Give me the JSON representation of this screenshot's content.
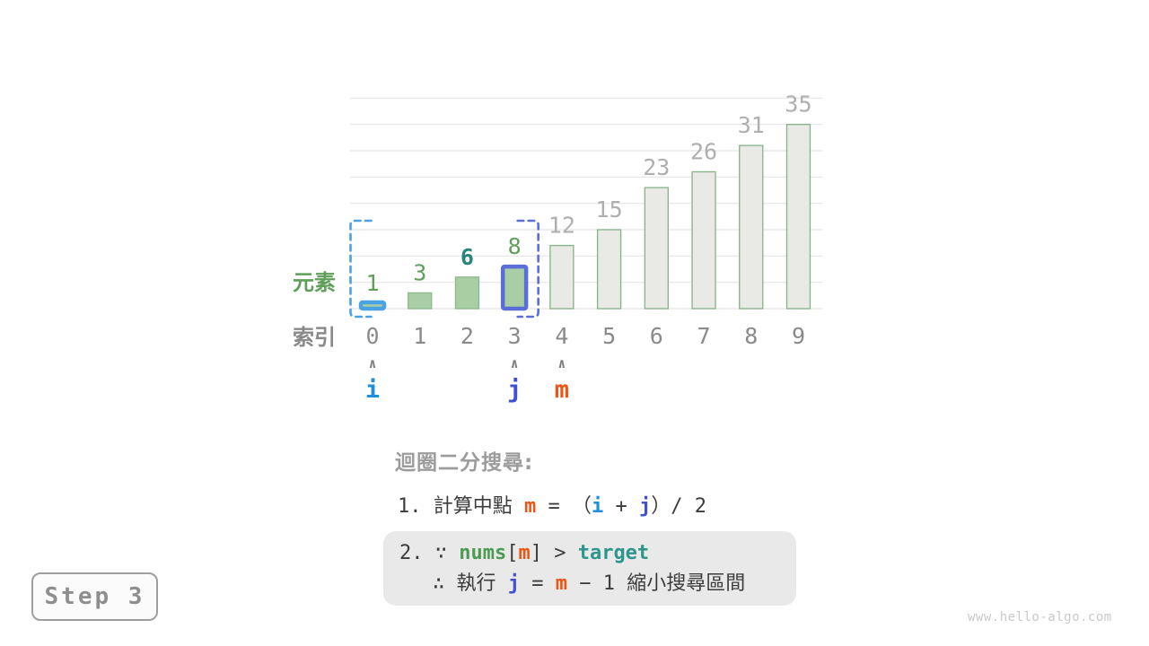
{
  "watermark": "www.hello-algo.com",
  "step_label": "Step 3",
  "colors": {
    "i": "#1E8FD8",
    "j": "#3F51D1",
    "m": "#EC5513",
    "green": "#5F9E5B",
    "teal": "#26847C",
    "nums_green": "#4C9B52",
    "target_teal": "#2D968C",
    "gray_label": "#8A8A8A",
    "light_gray_label": "#AFAFAF",
    "heading_gray": "#9C9C9C",
    "dark": "#3C3C3C",
    "bar_green_fill": "#A9CEA5",
    "bar_green_stroke": "#8BB987",
    "bar_gray_fill": "#E9E9E6",
    "bar_gray_stroke": "#85B287",
    "i_highlight": "#4BA2E2",
    "j_highlight": "#5B6ED8",
    "grid": "#E4E4E4",
    "caret": "#7F7F7F",
    "box_bg": "#E9E9E9",
    "step_border": "#9E9E9E",
    "step_text": "#8E8E8E",
    "watermark_gray": "#C9C9C9"
  },
  "chart_data": {
    "type": "bar",
    "title": "",
    "categories": [
      0,
      1,
      2,
      3,
      4,
      5,
      6,
      7,
      8,
      9
    ],
    "values": [
      1,
      3,
      6,
      8,
      12,
      15,
      23,
      26,
      31,
      35
    ],
    "ylim": [
      0,
      40
    ],
    "grid_step": 5,
    "grid_on": true,
    "row_labels": {
      "element": "元素",
      "index": "索引"
    },
    "value_label_styles": [
      "green",
      "green",
      "teal",
      "green",
      "gray",
      "gray",
      "gray",
      "gray",
      "gray",
      "gray"
    ],
    "search_range": [
      0,
      3
    ],
    "pointers": [
      {
        "name": "i",
        "index": 0
      },
      {
        "name": "j",
        "index": 3
      },
      {
        "name": "m",
        "index": 4
      }
    ],
    "caret_glyph": "∧"
  },
  "caption": {
    "heading": "迴圈二分搜尋:",
    "step1": [
      {
        "t": "1. ",
        "c": "dark"
      },
      {
        "t": "計算中點 ",
        "c": "dark"
      },
      {
        "t": "m",
        "c": "m",
        "b": 1
      },
      {
        "t": " = ",
        "c": "dark"
      },
      {
        "t": "（",
        "c": "dark"
      },
      {
        "t": "i",
        "c": "i",
        "b": 1
      },
      {
        "t": " + ",
        "c": "dark"
      },
      {
        "t": "j",
        "c": "j",
        "b": 1
      },
      {
        "t": "）/ 2",
        "c": "dark"
      }
    ],
    "step2_line1": [
      {
        "t": "2. ∵ ",
        "c": "dark"
      },
      {
        "t": "nums",
        "c": "nums_green",
        "b": 1
      },
      {
        "t": "[",
        "c": "dark"
      },
      {
        "t": "m",
        "c": "m",
        "b": 1
      },
      {
        "t": "] > ",
        "c": "dark"
      },
      {
        "t": "target",
        "c": "target_teal",
        "b": 1
      }
    ],
    "step2_line2": [
      {
        "t": "∴ 執行 ",
        "c": "dark"
      },
      {
        "t": "j",
        "c": "j",
        "b": 1
      },
      {
        "t": " = ",
        "c": "dark"
      },
      {
        "t": "m",
        "c": "m",
        "b": 1
      },
      {
        "t": " − 1 縮小搜尋區間",
        "c": "dark"
      }
    ]
  }
}
